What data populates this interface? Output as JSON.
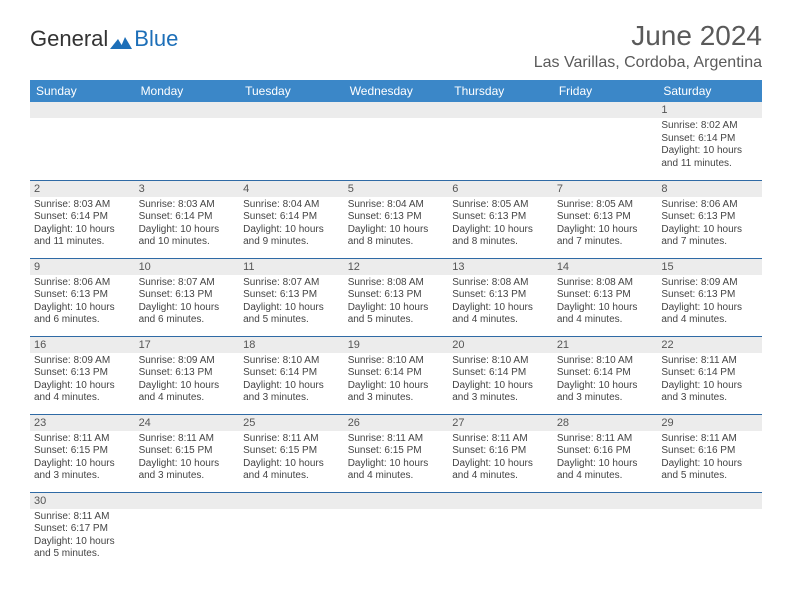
{
  "brand": {
    "general": "General",
    "blue": "Blue"
  },
  "title": "June 2024",
  "location": "Las Varillas, Cordoba, Argentina",
  "colors": {
    "header_bg": "#3b87c8",
    "header_text": "#ffffff",
    "daynum_bg": "#ececec",
    "row_border": "#2f6aa5",
    "title_color": "#5a5a5a",
    "logo_blue": "#1d6fb8"
  },
  "weekdays": [
    "Sunday",
    "Monday",
    "Tuesday",
    "Wednesday",
    "Thursday",
    "Friday",
    "Saturday"
  ],
  "weeks": [
    [
      null,
      null,
      null,
      null,
      null,
      null,
      {
        "n": "1",
        "sr": "Sunrise: 8:02 AM",
        "ss": "Sunset: 6:14 PM",
        "dl": "Daylight: 10 hours and 11 minutes."
      }
    ],
    [
      {
        "n": "2",
        "sr": "Sunrise: 8:03 AM",
        "ss": "Sunset: 6:14 PM",
        "dl": "Daylight: 10 hours and 11 minutes."
      },
      {
        "n": "3",
        "sr": "Sunrise: 8:03 AM",
        "ss": "Sunset: 6:14 PM",
        "dl": "Daylight: 10 hours and 10 minutes."
      },
      {
        "n": "4",
        "sr": "Sunrise: 8:04 AM",
        "ss": "Sunset: 6:14 PM",
        "dl": "Daylight: 10 hours and 9 minutes."
      },
      {
        "n": "5",
        "sr": "Sunrise: 8:04 AM",
        "ss": "Sunset: 6:13 PM",
        "dl": "Daylight: 10 hours and 8 minutes."
      },
      {
        "n": "6",
        "sr": "Sunrise: 8:05 AM",
        "ss": "Sunset: 6:13 PM",
        "dl": "Daylight: 10 hours and 8 minutes."
      },
      {
        "n": "7",
        "sr": "Sunrise: 8:05 AM",
        "ss": "Sunset: 6:13 PM",
        "dl": "Daylight: 10 hours and 7 minutes."
      },
      {
        "n": "8",
        "sr": "Sunrise: 8:06 AM",
        "ss": "Sunset: 6:13 PM",
        "dl": "Daylight: 10 hours and 7 minutes."
      }
    ],
    [
      {
        "n": "9",
        "sr": "Sunrise: 8:06 AM",
        "ss": "Sunset: 6:13 PM",
        "dl": "Daylight: 10 hours and 6 minutes."
      },
      {
        "n": "10",
        "sr": "Sunrise: 8:07 AM",
        "ss": "Sunset: 6:13 PM",
        "dl": "Daylight: 10 hours and 6 minutes."
      },
      {
        "n": "11",
        "sr": "Sunrise: 8:07 AM",
        "ss": "Sunset: 6:13 PM",
        "dl": "Daylight: 10 hours and 5 minutes."
      },
      {
        "n": "12",
        "sr": "Sunrise: 8:08 AM",
        "ss": "Sunset: 6:13 PM",
        "dl": "Daylight: 10 hours and 5 minutes."
      },
      {
        "n": "13",
        "sr": "Sunrise: 8:08 AM",
        "ss": "Sunset: 6:13 PM",
        "dl": "Daylight: 10 hours and 4 minutes."
      },
      {
        "n": "14",
        "sr": "Sunrise: 8:08 AM",
        "ss": "Sunset: 6:13 PM",
        "dl": "Daylight: 10 hours and 4 minutes."
      },
      {
        "n": "15",
        "sr": "Sunrise: 8:09 AM",
        "ss": "Sunset: 6:13 PM",
        "dl": "Daylight: 10 hours and 4 minutes."
      }
    ],
    [
      {
        "n": "16",
        "sr": "Sunrise: 8:09 AM",
        "ss": "Sunset: 6:13 PM",
        "dl": "Daylight: 10 hours and 4 minutes."
      },
      {
        "n": "17",
        "sr": "Sunrise: 8:09 AM",
        "ss": "Sunset: 6:13 PM",
        "dl": "Daylight: 10 hours and 4 minutes."
      },
      {
        "n": "18",
        "sr": "Sunrise: 8:10 AM",
        "ss": "Sunset: 6:14 PM",
        "dl": "Daylight: 10 hours and 3 minutes."
      },
      {
        "n": "19",
        "sr": "Sunrise: 8:10 AM",
        "ss": "Sunset: 6:14 PM",
        "dl": "Daylight: 10 hours and 3 minutes."
      },
      {
        "n": "20",
        "sr": "Sunrise: 8:10 AM",
        "ss": "Sunset: 6:14 PM",
        "dl": "Daylight: 10 hours and 3 minutes."
      },
      {
        "n": "21",
        "sr": "Sunrise: 8:10 AM",
        "ss": "Sunset: 6:14 PM",
        "dl": "Daylight: 10 hours and 3 minutes."
      },
      {
        "n": "22",
        "sr": "Sunrise: 8:11 AM",
        "ss": "Sunset: 6:14 PM",
        "dl": "Daylight: 10 hours and 3 minutes."
      }
    ],
    [
      {
        "n": "23",
        "sr": "Sunrise: 8:11 AM",
        "ss": "Sunset: 6:15 PM",
        "dl": "Daylight: 10 hours and 3 minutes."
      },
      {
        "n": "24",
        "sr": "Sunrise: 8:11 AM",
        "ss": "Sunset: 6:15 PM",
        "dl": "Daylight: 10 hours and 3 minutes."
      },
      {
        "n": "25",
        "sr": "Sunrise: 8:11 AM",
        "ss": "Sunset: 6:15 PM",
        "dl": "Daylight: 10 hours and 4 minutes."
      },
      {
        "n": "26",
        "sr": "Sunrise: 8:11 AM",
        "ss": "Sunset: 6:15 PM",
        "dl": "Daylight: 10 hours and 4 minutes."
      },
      {
        "n": "27",
        "sr": "Sunrise: 8:11 AM",
        "ss": "Sunset: 6:16 PM",
        "dl": "Daylight: 10 hours and 4 minutes."
      },
      {
        "n": "28",
        "sr": "Sunrise: 8:11 AM",
        "ss": "Sunset: 6:16 PM",
        "dl": "Daylight: 10 hours and 4 minutes."
      },
      {
        "n": "29",
        "sr": "Sunrise: 8:11 AM",
        "ss": "Sunset: 6:16 PM",
        "dl": "Daylight: 10 hours and 5 minutes."
      }
    ],
    [
      {
        "n": "30",
        "sr": "Sunrise: 8:11 AM",
        "ss": "Sunset: 6:17 PM",
        "dl": "Daylight: 10 hours and 5 minutes."
      },
      null,
      null,
      null,
      null,
      null,
      null
    ]
  ]
}
